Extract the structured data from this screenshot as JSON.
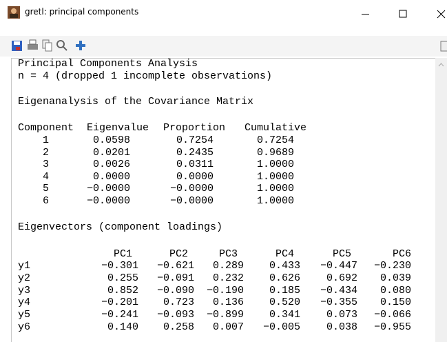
{
  "window": {
    "title": "gretl: principal components"
  },
  "output": {
    "heading": "Principal Components Analysis",
    "note": "n = 4 (dropped 1 incomplete observations)",
    "eigen_title": "Eigenanalysis of the Covariance Matrix",
    "eigen_table": {
      "columns": [
        "Component",
        "Eigenvalue",
        "Proportion",
        "Cumulative"
      ],
      "rows": [
        [
          "1",
          "0.0598",
          "0.7254",
          "0.7254"
        ],
        [
          "2",
          "0.0201",
          "0.2435",
          "0.9689"
        ],
        [
          "3",
          "0.0026",
          "0.0311",
          "1.0000"
        ],
        [
          "4",
          "0.0000",
          "0.0000",
          "1.0000"
        ],
        [
          "5",
          "−0.0000",
          "−0.0000",
          "1.0000"
        ],
        [
          "6",
          "−0.0000",
          "−0.0000",
          "1.0000"
        ]
      ]
    },
    "loadings_title": "Eigenvectors (component loadings)",
    "loadings_table": {
      "columns": [
        "PC1",
        "PC2",
        "PC3",
        "PC4",
        "PC5",
        "PC6"
      ],
      "rows": [
        [
          "y1",
          "−0.301",
          "−0.621",
          "0.289",
          "0.433",
          "−0.447",
          "−0.230"
        ],
        [
          "y2",
          "0.255",
          "−0.091",
          "0.232",
          "0.626",
          "0.692",
          "0.039"
        ],
        [
          "y3",
          "0.852",
          "−0.090",
          "−0.190",
          "0.185",
          "−0.434",
          "0.080"
        ],
        [
          "y4",
          "−0.201",
          "0.723",
          "0.136",
          "0.520",
          "−0.355",
          "0.150"
        ],
        [
          "y5",
          "−0.241",
          "−0.093",
          "−0.899",
          "0.341",
          "0.073",
          "−0.066"
        ],
        [
          "y6",
          "0.140",
          "0.258",
          "0.007",
          "−0.005",
          "0.038",
          "−0.955"
        ]
      ]
    }
  }
}
